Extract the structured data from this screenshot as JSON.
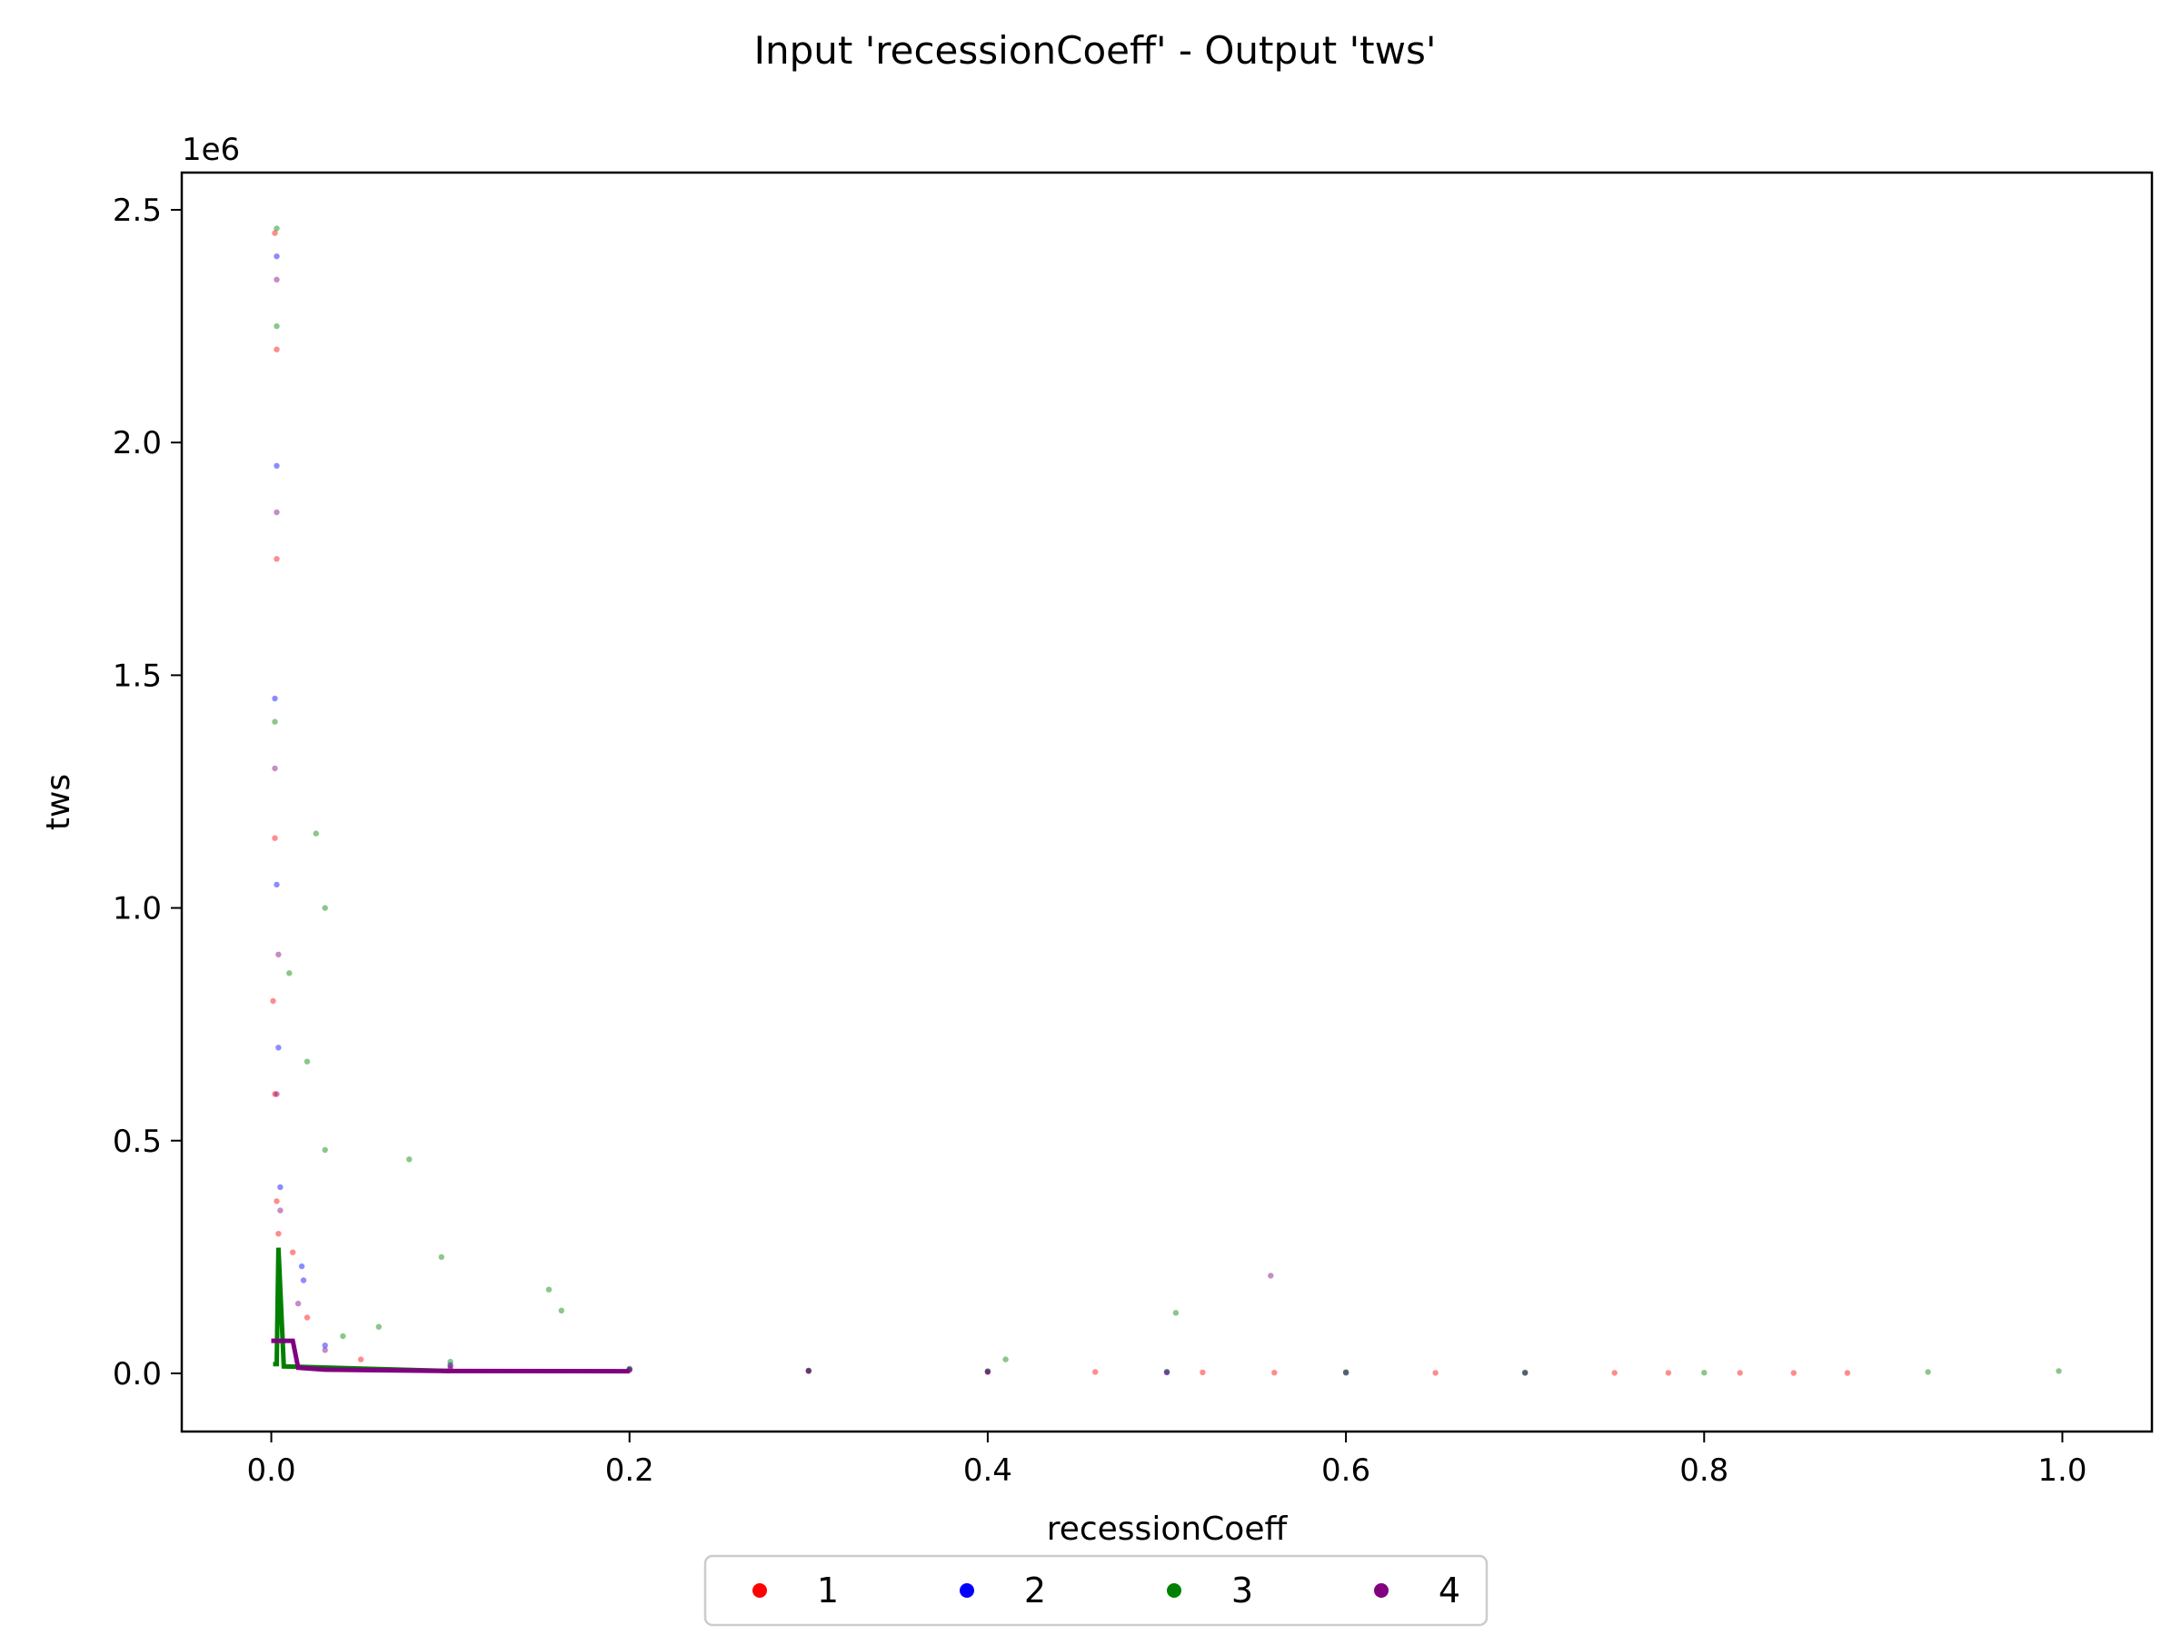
{
  "chart_data": {
    "type": "scatter",
    "title": "Input 'recessionCoeff' - Output 'tws'",
    "xlabel": "recessionCoeff",
    "ylabel": "tws",
    "y_offset_text": "1e6",
    "xlim": [
      -0.05,
      1.05
    ],
    "ylim": [
      -125000,
      2580000
    ],
    "x_ticks": [
      0.0,
      0.2,
      0.4,
      0.6,
      0.8,
      1.0
    ],
    "x_tick_labels": [
      "0.0",
      "0.2",
      "0.4",
      "0.6",
      "0.8",
      "1.0"
    ],
    "y_ticks": [
      0,
      500000,
      1000000,
      1500000,
      2000000,
      2500000
    ],
    "y_tick_labels": [
      "0.0",
      "0.5",
      "1.0",
      "1.5",
      "2.0",
      "2.5"
    ],
    "grid": false,
    "legend_placement": "bottom-center, below axes",
    "series": [
      {
        "name": "1",
        "color": "#ff0000",
        "points": [
          [
            0.002,
            2450000
          ],
          [
            0.003,
            2200000
          ],
          [
            0.003,
            1750000
          ],
          [
            0.002,
            1150000
          ],
          [
            0.001,
            800000
          ],
          [
            0.002,
            600000
          ],
          [
            0.003,
            370000
          ],
          [
            0.004,
            300000
          ],
          [
            0.012,
            260000
          ],
          [
            0.02,
            120000
          ],
          [
            0.05,
            30000
          ],
          [
            0.1,
            15000
          ],
          [
            0.2,
            8000
          ],
          [
            0.3,
            5000
          ],
          [
            0.4,
            3000
          ],
          [
            0.46,
            3000
          ],
          [
            0.52,
            2000
          ],
          [
            0.56,
            1500
          ],
          [
            0.6,
            1500
          ],
          [
            0.65,
            1000
          ],
          [
            0.7,
            1000
          ],
          [
            0.75,
            1000
          ],
          [
            0.78,
            1000
          ],
          [
            0.82,
            1000
          ],
          [
            0.85,
            800
          ],
          [
            0.88,
            800
          ]
        ]
      },
      {
        "name": "2",
        "color": "#0000ff",
        "points": [
          [
            0.003,
            2400000
          ],
          [
            0.003,
            1950000
          ],
          [
            0.002,
            1450000
          ],
          [
            0.003,
            1050000
          ],
          [
            0.004,
            700000
          ],
          [
            0.005,
            400000
          ],
          [
            0.017,
            230000
          ],
          [
            0.018,
            200000
          ],
          [
            0.03,
            60000
          ],
          [
            0.1,
            18000
          ],
          [
            0.2,
            9000
          ],
          [
            0.3,
            6000
          ],
          [
            0.4,
            4000
          ],
          [
            0.5,
            2000
          ],
          [
            0.6,
            1500
          ],
          [
            0.7,
            1000
          ]
        ]
      },
      {
        "name": "3",
        "color": "#008000",
        "points": [
          [
            0.003,
            2460000
          ],
          [
            0.003,
            2250000
          ],
          [
            0.002,
            1400000
          ],
          [
            0.025,
            1160000
          ],
          [
            0.03,
            1000000
          ],
          [
            0.01,
            860000
          ],
          [
            0.02,
            670000
          ],
          [
            0.03,
            480000
          ],
          [
            0.077,
            460000
          ],
          [
            0.095,
            250000
          ],
          [
            0.155,
            180000
          ],
          [
            0.162,
            135000
          ],
          [
            0.505,
            130000
          ],
          [
            0.06,
            100000
          ],
          [
            0.04,
            80000
          ],
          [
            0.1,
            25000
          ],
          [
            0.2,
            10000
          ],
          [
            0.3,
            6000
          ],
          [
            0.4,
            5000
          ],
          [
            0.41,
            30000
          ],
          [
            0.5,
            4000
          ],
          [
            0.6,
            3000
          ],
          [
            0.7,
            2000
          ],
          [
            0.8,
            1500
          ],
          [
            0.925,
            3000
          ],
          [
            0.998,
            5000
          ]
        ]
      },
      {
        "name": "4",
        "color": "#800080",
        "points": [
          [
            0.003,
            2350000
          ],
          [
            0.003,
            1850000
          ],
          [
            0.002,
            1300000
          ],
          [
            0.004,
            900000
          ],
          [
            0.003,
            600000
          ],
          [
            0.005,
            350000
          ],
          [
            0.015,
            150000
          ],
          [
            0.03,
            50000
          ],
          [
            0.558,
            210000
          ],
          [
            0.1,
            10000
          ],
          [
            0.2,
            7000
          ],
          [
            0.3,
            5000
          ],
          [
            0.4,
            3000
          ],
          [
            0.5,
            2000
          ]
        ]
      }
    ],
    "trend_lines": [
      {
        "series": "3",
        "color": "#008000",
        "points": [
          [
            0.001,
            20000
          ],
          [
            0.003,
            20000
          ],
          [
            0.004,
            270000
          ],
          [
            0.007,
            15000
          ],
          [
            0.1,
            5000
          ]
        ]
      },
      {
        "series": "4",
        "color": "#800080",
        "points": [
          [
            0.0,
            70000
          ],
          [
            0.012,
            70000
          ],
          [
            0.015,
            12000
          ],
          [
            0.03,
            8000
          ],
          [
            0.1,
            5000
          ],
          [
            0.2,
            4500
          ]
        ]
      }
    ]
  }
}
